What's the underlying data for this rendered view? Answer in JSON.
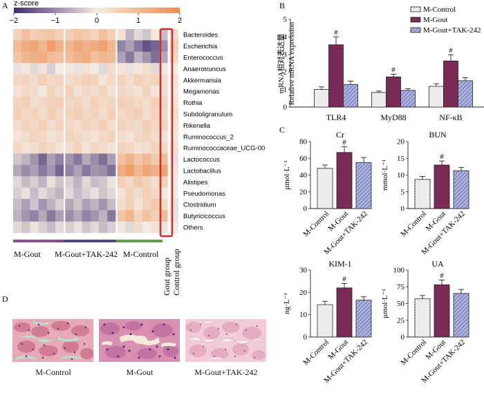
{
  "panel_labels": {
    "a": "A",
    "b": "B",
    "c": "C",
    "d": "D"
  },
  "colors": {
    "mgout": "#7b2a55",
    "tak": "#9aa3d8",
    "ctrl": "#ffffff",
    "low": "#3f2d6e",
    "mid": "#f3ece4",
    "high": "#ee8a4a",
    "gout_box": "#d62a2a",
    "bar_gout": "#8e4c8e",
    "bar_tak": "#4f4a7f",
    "bar_ctrl": "#5fa14a"
  },
  "chart_data": [
    {
      "id": "heatmap",
      "type": "heatmap",
      "colorbar_title": "z-score",
      "colorbar_ticks": [
        "−2",
        "−1",
        "0",
        "1",
        "2"
      ],
      "colorbar_range": [
        -2,
        2
      ],
      "rows": [
        "Bacteroides",
        "Escherichia",
        "Enterococcus",
        "Anaerotruncus",
        "Akkermansia",
        "Megamonas",
        "Rothia",
        "Subdoligranulum",
        "Rikenella",
        "Ruminococcus_2",
        "Ruminococcaceae_UCG-00",
        "Lactococcus",
        "Lactobacillus",
        "Alistipes",
        "Pseudomonas",
        "Clostridium",
        "Butyricicoccus",
        "Others"
      ],
      "groups": [
        "M-Gout",
        "M-Gout+TAK-242",
        "M-Control"
      ],
      "side_labels": [
        "Gout group",
        "Control group"
      ],
      "values": [
        [
          0.5,
          0.9,
          0.6,
          0.7,
          0.8,
          0.6,
          0.6,
          0.8,
          0.7,
          0.5,
          0.9,
          0.6,
          0.2,
          -0.6,
          -0.2,
          -0.4,
          0.1,
          -0.5,
          0.3
        ],
        [
          1.0,
          1.3,
          1.4,
          1.1,
          1.6,
          1.2,
          1.1,
          1.4,
          1.2,
          1.3,
          1.5,
          1.1,
          -1.1,
          -0.8,
          -1.2,
          -1.6,
          -1.4,
          -1.0,
          0.6
        ],
        [
          0.8,
          1.1,
          1.2,
          1.3,
          1.0,
          0.9,
          1.0,
          1.2,
          1.3,
          0.9,
          1.1,
          1.0,
          -0.8,
          -1.2,
          -0.6,
          -0.9,
          -1.3,
          -0.7,
          0.4
        ],
        [
          -0.1,
          0.1,
          -0.2,
          0.2,
          -0.3,
          0.0,
          0.1,
          -0.1,
          0.2,
          0.0,
          -0.2,
          0.3,
          0.2,
          -0.1,
          0.1,
          0.3,
          -0.2,
          0.1,
          0.0
        ],
        [
          0.4,
          0.5,
          0.3,
          0.6,
          0.4,
          0.5,
          0.3,
          0.4,
          0.6,
          0.5,
          0.2,
          0.4,
          0.5,
          0.3,
          0.6,
          0.4,
          0.5,
          0.3,
          0.2
        ],
        [
          0.2,
          0.4,
          0.3,
          0.1,
          0.5,
          0.3,
          0.6,
          0.2,
          0.4,
          0.3,
          0.5,
          0.2,
          0.4,
          0.3,
          0.2,
          0.5,
          0.1,
          0.3,
          0.1
        ],
        [
          0.5,
          0.6,
          0.3,
          0.4,
          0.5,
          0.6,
          0.4,
          0.5,
          0.3,
          0.6,
          0.4,
          0.5,
          0.6,
          0.5,
          0.4,
          0.3,
          0.6,
          0.5,
          0.2
        ],
        [
          0.6,
          0.4,
          0.5,
          0.3,
          0.6,
          0.4,
          0.5,
          0.6,
          0.4,
          0.5,
          0.3,
          0.6,
          0.4,
          0.5,
          0.6,
          0.3,
          0.5,
          0.4,
          0.3
        ],
        [
          0.3,
          0.5,
          0.4,
          0.6,
          0.3,
          0.5,
          0.4,
          0.3,
          0.5,
          0.4,
          0.6,
          0.3,
          0.5,
          0.4,
          0.3,
          0.6,
          0.4,
          0.5,
          0.2
        ],
        [
          0.2,
          0.3,
          0.5,
          0.4,
          0.2,
          0.3,
          0.5,
          0.4,
          0.3,
          0.2,
          0.4,
          0.5,
          0.3,
          0.2,
          0.4,
          0.5,
          0.3,
          0.2,
          0.1
        ],
        [
          0.4,
          0.2,
          0.3,
          0.5,
          0.4,
          0.2,
          0.3,
          0.5,
          0.2,
          0.4,
          0.3,
          0.2,
          0.5,
          0.4,
          0.2,
          0.3,
          0.5,
          0.4,
          0.2
        ],
        [
          -0.4,
          -0.6,
          -0.9,
          -1.4,
          -0.8,
          -1.1,
          -0.9,
          -1.2,
          -0.7,
          -1.0,
          -1.3,
          -0.8,
          0.9,
          1.2,
          0.8,
          1.1,
          0.7,
          1.0,
          -0.1
        ],
        [
          -0.7,
          -1.0,
          -0.8,
          -1.2,
          -0.9,
          -1.4,
          -1.1,
          -0.8,
          -1.2,
          -0.9,
          -1.0,
          -1.3,
          1.3,
          1.6,
          1.1,
          1.4,
          1.2,
          1.5,
          0.1
        ],
        [
          -0.2,
          -0.5,
          -0.3,
          -0.6,
          -0.1,
          -0.4,
          -0.3,
          -0.6,
          -0.2,
          -0.5,
          -0.4,
          -0.1,
          0.6,
          0.4,
          0.7,
          0.5,
          0.3,
          0.6,
          0.0
        ],
        [
          -0.3,
          -0.1,
          -0.5,
          -0.2,
          -0.4,
          -0.6,
          -0.2,
          -0.5,
          -0.3,
          -0.1,
          -0.4,
          -0.2,
          0.2,
          0.5,
          0.3,
          0.6,
          0.4,
          0.1,
          0.0
        ],
        [
          -0.5,
          -0.8,
          -0.4,
          -0.9,
          -0.6,
          -0.3,
          -0.7,
          -0.4,
          -0.8,
          -0.6,
          -0.9,
          -0.5,
          0.3,
          0.6,
          0.2,
          0.5,
          0.7,
          0.4,
          -0.1
        ],
        [
          -0.6,
          -0.9,
          -1.1,
          -0.7,
          -1.2,
          -0.8,
          -1.0,
          -0.7,
          -1.1,
          -0.9,
          -0.6,
          -1.2,
          0.8,
          1.1,
          0.5,
          0.9,
          0.6,
          1.0,
          -0.1
        ],
        [
          -0.2,
          -0.4,
          -0.1,
          -0.3,
          -0.5,
          -0.2,
          -0.3,
          -0.1,
          -0.4,
          -0.2,
          -0.5,
          -0.3,
          0.1,
          -0.2,
          0.3,
          0.0,
          0.2,
          -0.1,
          0.0
        ]
      ]
    },
    {
      "id": "mrna",
      "type": "bar",
      "ylabel_cn": "mRNA相对表达量",
      "ylabel": "Relative mRNA expression",
      "ylim": [
        0,
        5
      ],
      "yticks": [
        "0",
        "1",
        "2",
        "3",
        "4",
        "5"
      ],
      "categories": [
        "TLR4",
        "MyD88",
        "NF-κB"
      ],
      "series": [
        {
          "name": "M-Control",
          "values": [
            1.0,
            0.83,
            1.18
          ],
          "errors": [
            0.15,
            0.08,
            0.15
          ]
        },
        {
          "name": "M-Gout",
          "values": [
            3.55,
            1.72,
            2.63
          ],
          "errors": [
            0.45,
            0.15,
            0.35
          ]
        },
        {
          "name": "M-Gout+TAK-242",
          "values": [
            1.28,
            0.95,
            1.5
          ],
          "errors": [
            0.2,
            0.1,
            0.17
          ]
        }
      ],
      "markers": [
        "#",
        "#",
        "#"
      ]
    },
    {
      "id": "cr",
      "type": "bar",
      "title": "Cr",
      "ylabel": "μmol·L⁻¹",
      "ylim": [
        0,
        80
      ],
      "yticks": [
        "0",
        "20",
        "40",
        "60",
        "80"
      ],
      "categories": [
        "M-Control",
        "M-Gout",
        "M-Gout+TAK-242"
      ],
      "values": [
        48,
        67,
        55
      ],
      "errors": [
        4,
        7,
        6
      ],
      "marker": "#"
    },
    {
      "id": "bun",
      "type": "bar",
      "title": "BUN",
      "ylabel": "mmol·L⁻¹",
      "ylim": [
        0,
        20
      ],
      "yticks": [
        "0",
        "5",
        "10",
        "15",
        "20"
      ],
      "categories": [
        "M-Control",
        "M-Gout",
        "M-Gout+TAK-242"
      ],
      "values": [
        8.7,
        13.0,
        11.3
      ],
      "errors": [
        0.9,
        1.2,
        1.0
      ],
      "marker": "#"
    },
    {
      "id": "kim",
      "type": "bar",
      "title": "KIM-1",
      "ylabel": "ng·L⁻¹",
      "ylim": [
        0,
        30
      ],
      "yticks": [
        "0",
        "10",
        "20",
        "30"
      ],
      "categories": [
        "M-Control",
        "M-Gout",
        "M-Gout+TAK-242"
      ],
      "values": [
        14.5,
        22.0,
        16.5
      ],
      "errors": [
        1.5,
        2.0,
        1.5
      ],
      "marker": "#"
    },
    {
      "id": "ua",
      "type": "bar",
      "title": "UA",
      "ylabel": "μmol·L⁻¹",
      "ylim": [
        0,
        100
      ],
      "yticks": [
        "0",
        "25",
        "50",
        "75",
        "100"
      ],
      "categories": [
        "M-Control",
        "M-Gout",
        "M-Gout+TAK-242"
      ],
      "values": [
        57,
        78,
        65
      ],
      "errors": [
        5,
        7,
        6
      ],
      "marker": "#"
    }
  ],
  "histology": {
    "captions": [
      "M-Control",
      "M-Gout",
      "M-Gout+TAK-242"
    ]
  }
}
